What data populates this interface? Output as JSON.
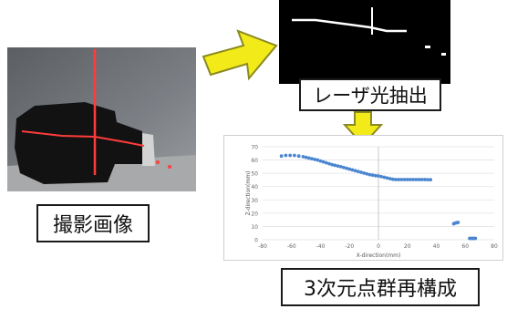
{
  "captions": {
    "photo": "撮影画像",
    "laser": "レーザ光抽出",
    "reconstruction": "3次元点群再構成"
  },
  "colors": {
    "arrow_fill": "#f3ea1a",
    "arrow_stroke": "#8a8a20",
    "laser_red": "#ff3b3b",
    "point_blue": "#4a86d0"
  },
  "icons": {
    "right_arrow": "right-arrow-icon",
    "down_arrow": "down-arrow-icon"
  },
  "chart_data": {
    "type": "scatter",
    "xlabel": "X-direction(mm)",
    "ylabel": "Z-direction(mm)",
    "xlim": [
      -80,
      80
    ],
    "ylim": [
      0,
      70
    ],
    "xticks": [
      -80,
      -60,
      -40,
      -20,
      0,
      20,
      40,
      60,
      80
    ],
    "yticks": [
      0,
      10,
      20,
      30,
      40,
      50,
      60,
      70
    ],
    "grid": "horizontal",
    "legend": "none",
    "series": [
      {
        "x": [
          -67,
          -64,
          -61,
          -58,
          -55,
          -52,
          -50,
          -48,
          -46,
          -44,
          -42,
          -40,
          -38,
          -36,
          -34,
          -32,
          -30,
          -28,
          -26,
          -24,
          -22,
          -20,
          -18,
          -16,
          -14,
          -12,
          -10,
          -8,
          -6,
          -4,
          -2,
          0,
          2,
          4,
          6,
          8,
          10,
          12,
          14,
          16,
          18,
          20,
          22,
          24,
          26,
          28,
          30,
          32,
          34,
          36,
          52,
          53,
          54,
          55,
          63,
          64,
          65,
          66,
          67
        ],
        "y": [
          63,
          63.5,
          63.5,
          63.5,
          63,
          62.5,
          62,
          61.5,
          61,
          60.5,
          60,
          59.3,
          58.6,
          57.9,
          57.2,
          56.5,
          56,
          55.5,
          55,
          54.4,
          53.8,
          53.2,
          52.6,
          52,
          51.4,
          50.8,
          50.2,
          49.6,
          49,
          48.6,
          48.2,
          48,
          47.5,
          47,
          46.5,
          46,
          45.5,
          45.3,
          45.3,
          45.3,
          45.3,
          45.3,
          45.3,
          45.3,
          45.3,
          45.3,
          45.3,
          45.3,
          45.2,
          45.2,
          12,
          12.5,
          12.8,
          13,
          1,
          1,
          1,
          1,
          1
        ]
      }
    ]
  }
}
